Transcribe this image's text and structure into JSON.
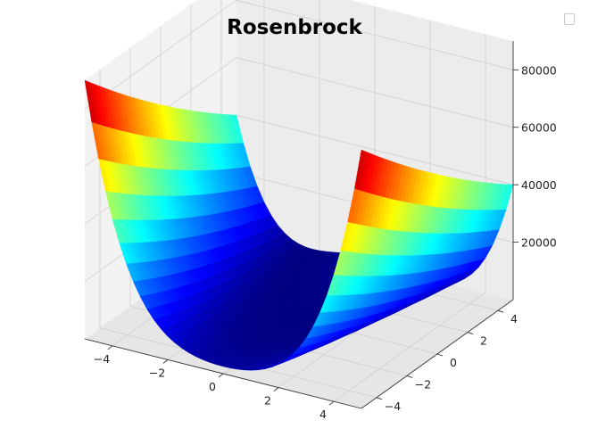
{
  "chart_data": {
    "type": "surface3d",
    "title": "Rosenbrock",
    "function": "(1 - x)^2 + 100 * (y - x^2)^2",
    "colormap": "jet",
    "x_range": [
      -5,
      5
    ],
    "y_range": [
      -5,
      5
    ],
    "z_range": [
      0,
      90036
    ],
    "x_ticks": [
      "−4",
      "−2",
      "0",
      "2",
      "4"
    ],
    "y_ticks": [
      "−4",
      "−2",
      "0",
      "2",
      "4"
    ],
    "z_ticks": [
      "20000",
      "40000",
      "60000",
      "80000"
    ],
    "grid": true,
    "legend": "top-right (empty)"
  }
}
